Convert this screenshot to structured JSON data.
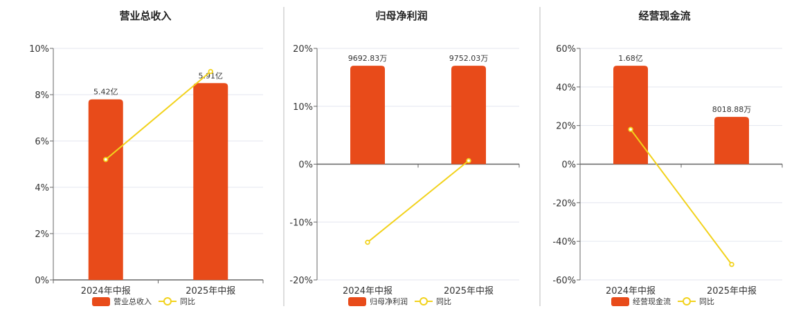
{
  "colors": {
    "bar": "#E84B1A",
    "line": "#F2D21B",
    "grid": "#E3E6EF",
    "axis": "#666666",
    "divider": "#BBBBBB"
  },
  "chart_data": [
    {
      "type": "bar",
      "title": "营业总收入",
      "categories": [
        "2024年中报",
        "2025年中报"
      ],
      "series": [
        {
          "name": "营业总收入",
          "type": "bar",
          "values": [
            7.8,
            8.5
          ],
          "labels": [
            "5.42亿",
            "5.91亿"
          ]
        },
        {
          "name": "同比",
          "type": "line",
          "values": [
            5.2,
            9.0
          ]
        }
      ],
      "ylim": [
        0,
        10
      ],
      "yticks": [
        "0%",
        "2%",
        "4%",
        "6%",
        "8%",
        "10%"
      ],
      "ytick_values": [
        0,
        2,
        4,
        6,
        8,
        10
      ],
      "legend": "bottom"
    },
    {
      "type": "bar",
      "title": "归母净利润",
      "categories": [
        "2024年中报",
        "2025年中报"
      ],
      "series": [
        {
          "name": "归母净利润",
          "type": "bar",
          "values": [
            17,
            17
          ],
          "labels": [
            "9692.83万",
            "9752.03万"
          ]
        },
        {
          "name": "同比",
          "type": "line",
          "values": [
            -13.5,
            0.6
          ]
        }
      ],
      "ylim": [
        -20,
        20
      ],
      "yticks": [
        "-20%",
        "-10%",
        "0%",
        "10%",
        "20%"
      ],
      "ytick_values": [
        -20,
        -10,
        0,
        10,
        20
      ],
      "legend": "bottom"
    },
    {
      "type": "bar",
      "title": "经营现金流",
      "categories": [
        "2024年中报",
        "2025年中报"
      ],
      "series": [
        {
          "name": "经营现金流",
          "type": "bar",
          "values": [
            51,
            24.5
          ],
          "labels": [
            "1.68亿",
            "8018.88万"
          ]
        },
        {
          "name": "同比",
          "type": "line",
          "values": [
            18,
            -52
          ]
        }
      ],
      "ylim": [
        -60,
        60
      ],
      "yticks": [
        "-60%",
        "-40%",
        "-20%",
        "0%",
        "20%",
        "40%",
        "60%"
      ],
      "ytick_values": [
        -60,
        -40,
        -20,
        0,
        20,
        40,
        60
      ],
      "legend": "bottom"
    }
  ]
}
